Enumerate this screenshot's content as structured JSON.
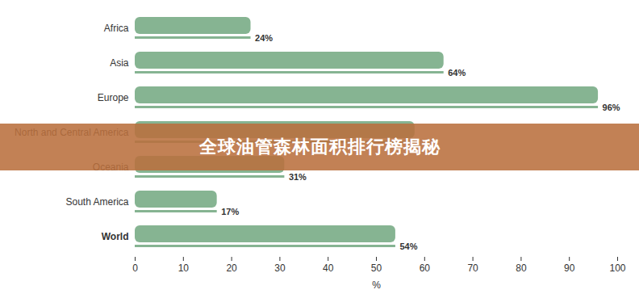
{
  "chart_data": {
    "type": "bar",
    "orientation": "horizontal",
    "title": "全球油管森林面积排行榜揭秘",
    "categories": [
      "Africa",
      "Asia",
      "Europe",
      "North and Central America",
      "Oceania",
      "South America",
      "World"
    ],
    "values": [
      24,
      64,
      96,
      58,
      31,
      17,
      54
    ],
    "value_labels": [
      "24%",
      "64%",
      "96%",
      null,
      "31%",
      "17%",
      "54%"
    ],
    "data_labels": true,
    "color": "#86b492",
    "x_label": "%",
    "xlim": [
      0,
      100
    ],
    "xticks": [
      0,
      10,
      20,
      30,
      40,
      50,
      60,
      70,
      80,
      90,
      100
    ],
    "grid": false
  }
}
